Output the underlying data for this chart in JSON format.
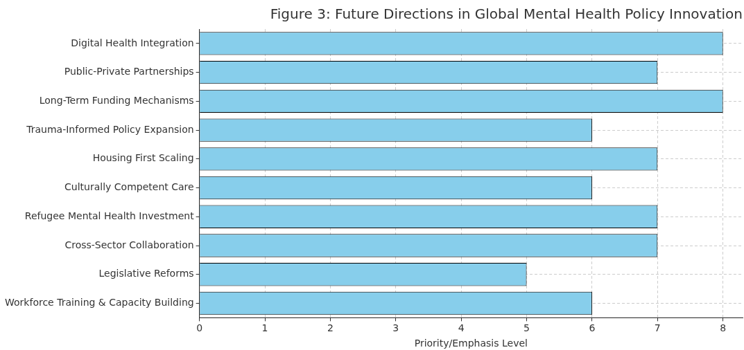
{
  "chart_data": {
    "type": "bar",
    "orientation": "horizontal",
    "title": "Figure 3: Future Directions in Global Mental Health Policy Innovation",
    "xlabel": "Priority/Emphasis Level",
    "categories": [
      "Digital Health Integration",
      "Public-Private Partnerships",
      "Long-Term Funding Mechanisms",
      "Trauma-Informed Policy Expansion",
      "Housing First Scaling",
      "Culturally Competent Care",
      "Refugee Mental Health Investment",
      "Cross-Sector Collaboration",
      "Legislative Reforms",
      "Workforce Training & Capacity Building"
    ],
    "values": [
      8,
      7,
      8,
      6,
      7,
      6,
      7,
      7,
      5,
      6
    ],
    "color": "#87ceeb",
    "xlim": [
      0,
      8.3
    ],
    "xticks": [
      0,
      1,
      2,
      3,
      4,
      5,
      6,
      7,
      8
    ],
    "grid": true,
    "legend": false
  }
}
